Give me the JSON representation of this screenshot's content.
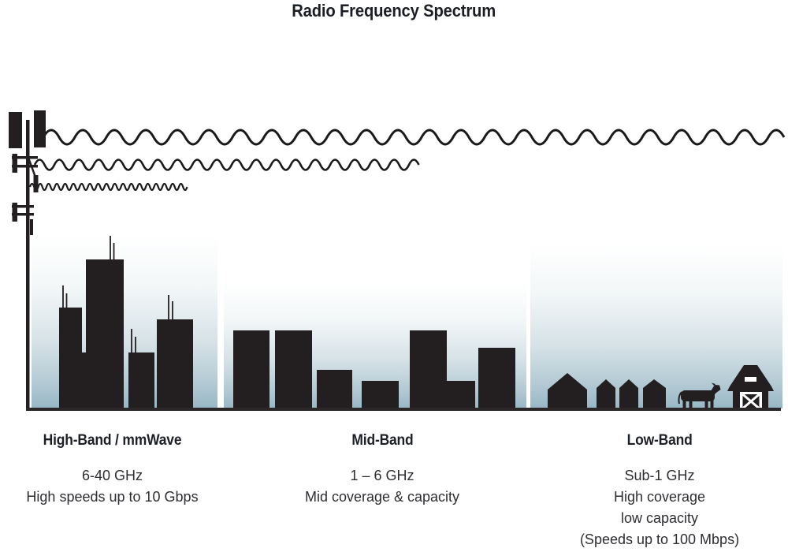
{
  "title": "Radio Frequency Spectrum",
  "bands": [
    {
      "name": "High-Band / mmWave",
      "frequency": "6-40 GHz",
      "desc": [
        "High speeds up to 10 Gbps"
      ]
    },
    {
      "name": "Mid-Band",
      "frequency": "1 – 6 GHz",
      "desc": [
        "Mid coverage & capacity"
      ]
    },
    {
      "name": "Low-Band",
      "frequency": "Sub-1 GHz",
      "desc": [
        "High coverage",
        "low capacity",
        "(Speeds up to 100 Mbps)"
      ]
    }
  ],
  "colors": {
    "ink": "#231f20",
    "wave_stroke": "#1a1a1a",
    "sky_bottom": "#97b7c6",
    "ground": "#2b2728",
    "text": "#2e2e32",
    "heading": "#1d2027"
  }
}
